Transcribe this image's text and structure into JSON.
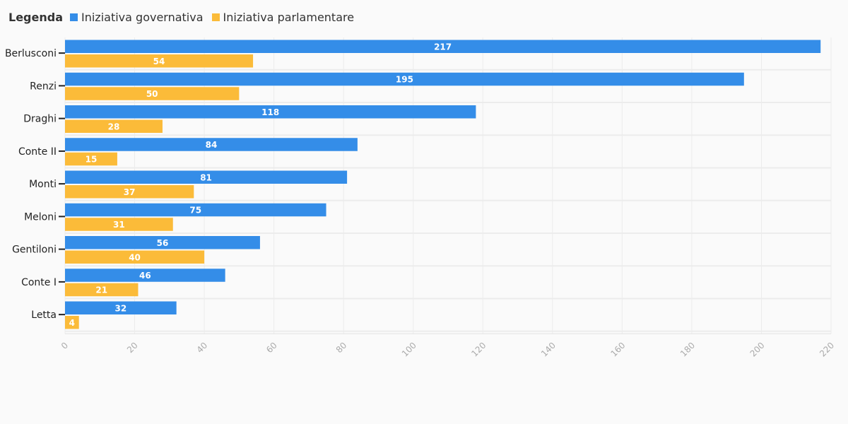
{
  "legend": {
    "title": "Legenda"
  },
  "chart_data": {
    "type": "bar",
    "orientation": "horizontal",
    "categories": [
      "Berlusconi",
      "Renzi",
      "Draghi",
      "Conte II",
      "Monti",
      "Meloni",
      "Gentiloni",
      "Conte I",
      "Letta"
    ],
    "series": [
      {
        "name": "Iniziativa governativa",
        "color": "#348de8",
        "values": [
          217,
          195,
          118,
          84,
          81,
          75,
          56,
          46,
          32
        ]
      },
      {
        "name": "Iniziativa parlamentare",
        "color": "#fbbb39",
        "values": [
          54,
          50,
          28,
          15,
          37,
          31,
          40,
          21,
          4
        ]
      }
    ],
    "xlim": [
      0,
      220
    ],
    "xticks": [
      0,
      20,
      40,
      60,
      80,
      100,
      120,
      140,
      160,
      180,
      200,
      220
    ],
    "grid": true,
    "legend_position": "top-left",
    "show_value_labels": true,
    "title": "",
    "xlabel": "",
    "ylabel": ""
  }
}
